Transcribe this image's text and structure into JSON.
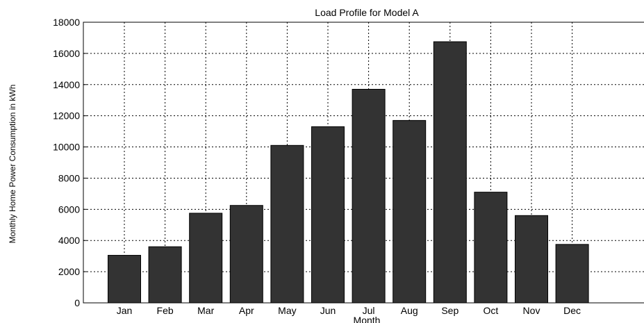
{
  "chart_data": {
    "type": "bar",
    "title": "Load Profile for Model A",
    "xlabel": "Month",
    "ylabel": "Monthly Home Power Consumption in kWh",
    "categories": [
      "Jan",
      "Feb",
      "Mar",
      "Apr",
      "May",
      "Jun",
      "Jul",
      "Aug",
      "Sep",
      "Oct",
      "Nov",
      "Dec"
    ],
    "values": [
      3050,
      3600,
      5750,
      6250,
      10100,
      11300,
      13700,
      11700,
      16750,
      7100,
      5600,
      3750
    ],
    "ylim": [
      0,
      18000
    ],
    "yticks": [
      0,
      2000,
      4000,
      6000,
      8000,
      10000,
      12000,
      14000,
      16000,
      18000
    ],
    "grid": true,
    "bar_color": "#333333"
  }
}
